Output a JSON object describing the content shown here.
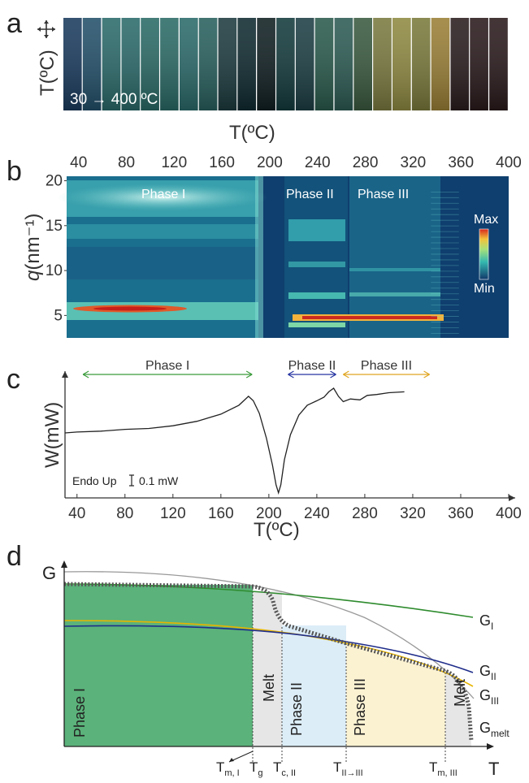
{
  "panel_a": {
    "letter": "a",
    "y_label": "T(ºC)",
    "scan_label": "30 → 400 ºC",
    "frame_colors": [
      "#1a3b5e",
      "#23506a",
      "#2b6a6a",
      "#2b6a6a",
      "#2a6a66",
      "#2a6a66",
      "#2b6a6a",
      "#28605e",
      "#1d3b3f",
      "#0f2a30",
      "#101f22",
      "#133a3c",
      "#1c3e44",
      "#2a5a4c",
      "#2d5b54",
      "#3a5a40",
      "#7a7a40",
      "#8f8a42",
      "#7a7a3c",
      "#9a7f36",
      "#2a1d1e",
      "#2a1a1c",
      "#2a1a1c"
    ]
  },
  "panel_b": {
    "letter": "b",
    "top_axis_title": "T(ºC)",
    "y_label_italic": "q",
    "y_label_rest": "(nm⁻¹)",
    "colorbar_max": "Max",
    "colorbar_min": "Min",
    "phases": [
      "Phase I",
      "Phase II",
      "Phase III"
    ]
  },
  "panel_c": {
    "letter": "c",
    "y_label": "W(mW)",
    "scale_note": "Endo Up",
    "scale_value": "0.1 mW",
    "phases": [
      "Phase I",
      "Phase II",
      "Phase III"
    ],
    "bottom_axis_title": "T(ºC)"
  },
  "panel_d": {
    "letter": "d",
    "y_label": "G",
    "x_label": "T",
    "curve_labels": {
      "g1_main": "G",
      "g1_sub": "I",
      "g2_main": "G",
      "g2_sub": "II",
      "g3_main": "G",
      "g3_sub": "III",
      "gm_main": "G",
      "gm_sub": "melt"
    },
    "regions": [
      "Phase I",
      "Melt",
      "Phase II",
      "Phase III",
      "Melt"
    ],
    "temps": {
      "tm1_main": "T",
      "tm1_sub": "m, I",
      "tg_main": "T",
      "tg_sub": "g",
      "tc2_main": "T",
      "tc2_sub": "c, II",
      "t23_main": "T",
      "t23_sub": "II→III",
      "tm3_main": "T",
      "tm3_sub": "m, III"
    },
    "colors": {
      "phase1": "#5bb27a",
      "melt": "#e6e6e6",
      "phase2": "#dcedf7",
      "phase3": "#fbf2d2",
      "g1": "#2e8b2e",
      "g2": "#1f2d8a",
      "g3": "#e6b400",
      "gmelt": "#999999"
    }
  },
  "chart_data": [
    {
      "type": "heatmap",
      "panel": "b",
      "xlabel": "T(ºC)",
      "ylabel": "q(nm⁻¹)",
      "xlim": [
        30,
        400
      ],
      "ylim": [
        2.5,
        20.5
      ],
      "x_ticks": [
        40,
        80,
        120,
        160,
        200,
        240,
        280,
        320,
        360,
        400
      ],
      "y_ticks": [
        5,
        10,
        15,
        20
      ],
      "phase_ranges": [
        {
          "name": "Phase I",
          "from": 30,
          "to": 190
        },
        {
          "name": "Phase II",
          "from": 220,
          "to": 257
        },
        {
          "name": "Phase III",
          "from": 260,
          "to": 345
        }
      ],
      "bright_bands": [
        {
          "q": 5.5,
          "from": 30,
          "to": 185,
          "level": "high"
        },
        {
          "q": 16.0,
          "from": 30,
          "to": 190,
          "level": "medium"
        },
        {
          "q": 4.2,
          "from": 222,
          "to": 345,
          "level": "high"
        },
        {
          "q": 3.3,
          "from": 222,
          "to": 256,
          "level": "medium"
        }
      ]
    },
    {
      "type": "line",
      "panel": "c",
      "xlabel": "T(ºC)",
      "ylabel": "W(mW)",
      "xlim": [
        30,
        400
      ],
      "x_ticks": [
        40,
        80,
        120,
        160,
        200,
        240,
        280,
        320,
        360,
        400
      ],
      "series": [
        {
          "x": [
            30,
            40,
            60,
            80,
            100,
            120,
            140,
            160,
            175,
            183,
            187,
            192,
            198,
            203,
            206,
            208,
            210,
            213,
            218,
            225,
            232,
            240,
            246,
            250,
            254,
            258,
            262,
            268,
            276,
            282,
            290,
            300,
            313
          ],
          "y": [
            0.0,
            0.01,
            0.02,
            0.04,
            0.05,
            0.08,
            0.13,
            0.21,
            0.31,
            0.41,
            0.36,
            0.22,
            -0.06,
            -0.36,
            -0.58,
            -0.67,
            -0.58,
            -0.3,
            -0.02,
            0.2,
            0.31,
            0.36,
            0.4,
            0.46,
            0.5,
            0.41,
            0.35,
            0.38,
            0.37,
            0.42,
            0.43,
            0.45,
            0.46
          ]
        }
      ],
      "phase_ranges": [
        {
          "name": "Phase I",
          "from": 45,
          "to": 186
        },
        {
          "name": "Phase II",
          "from": 216,
          "to": 256
        },
        {
          "name": "Phase III",
          "from": 262,
          "to": 334
        }
      ]
    }
  ]
}
